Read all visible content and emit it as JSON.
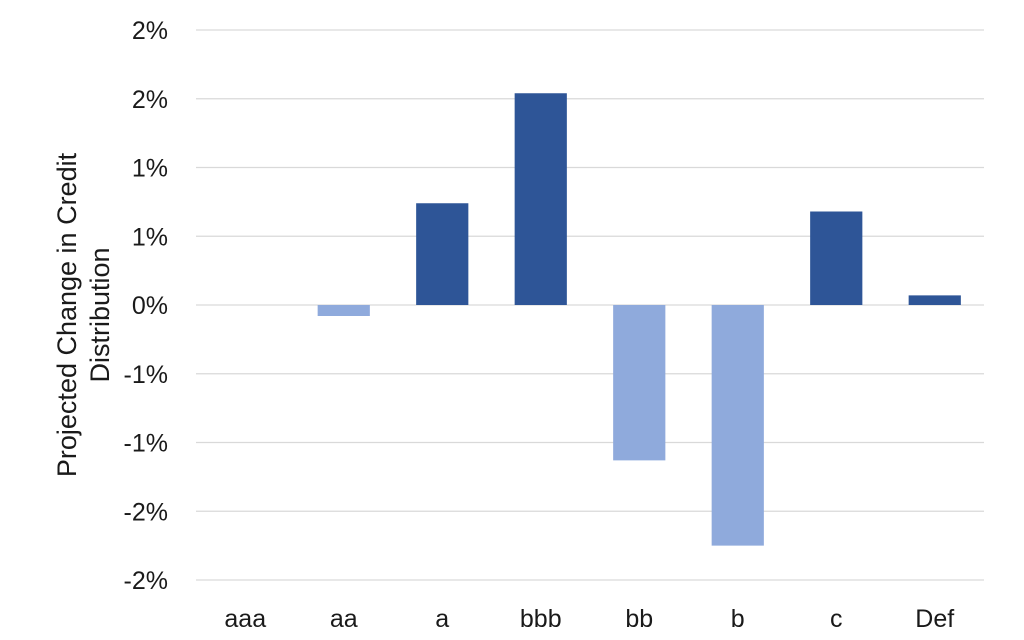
{
  "chart_data": {
    "type": "bar",
    "title": "",
    "xlabel": "",
    "ylabel": "Projected Change in Credit Distribution",
    "ylabel_lines": [
      "Projected Change in Credit",
      "Distribution"
    ],
    "categories": [
      "aaa",
      "aa",
      "a",
      "bbb",
      "bb",
      "b",
      "c",
      "Def"
    ],
    "values": [
      0.0,
      -0.08,
      0.74,
      1.54,
      -1.13,
      -1.75,
      0.68,
      0.07
    ],
    "ylim": [
      -2.0,
      2.0
    ],
    "yticks": [
      2.0,
      1.5,
      1.0,
      0.5,
      0.0,
      -0.5,
      -1.0,
      -1.5,
      -2.0
    ],
    "ytick_labels": [
      "2%",
      "2%",
      "1%",
      "1%",
      "0%",
      "-1%",
      "-1%",
      "-2%",
      "-2%"
    ],
    "grid": true,
    "legend": "none",
    "colors": {
      "positive": "#2e5597",
      "negative": "#8faadc",
      "grid": "#d9d9d9"
    }
  }
}
